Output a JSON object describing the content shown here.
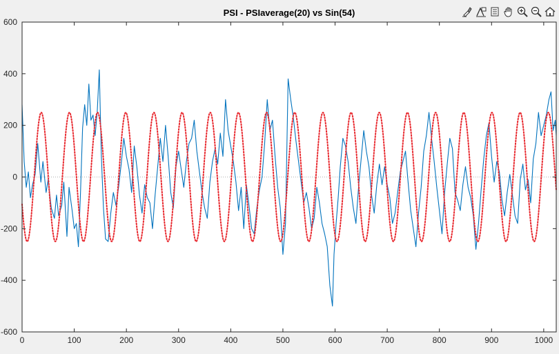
{
  "window": {
    "background": "#f0f0f0"
  },
  "toolbar": {
    "items": [
      {
        "name": "brush-icon"
      },
      {
        "name": "data-tips-icon"
      },
      {
        "name": "rotate-icon"
      },
      {
        "name": "pan-hand-icon"
      },
      {
        "name": "zoom-in-icon"
      },
      {
        "name": "zoom-out-icon"
      },
      {
        "name": "home-icon"
      }
    ]
  },
  "chart_data": {
    "type": "line",
    "title": "PSI - PSIaverage(20) vs Sin(54)",
    "xlabel": "",
    "ylabel": "",
    "xlim": [
      0,
      1024
    ],
    "ylim": [
      -600,
      600
    ],
    "xticks": [
      0,
      100,
      200,
      300,
      400,
      500,
      600,
      700,
      800,
      900,
      1000
    ],
    "yticks": [
      -600,
      -400,
      -200,
      0,
      200,
      400,
      600
    ],
    "grid": false,
    "zero_line": {
      "y": 0,
      "style": "dotted",
      "color": "#b0b0b0"
    },
    "series": [
      {
        "color": "#0072bd",
        "style": "solid",
        "points": [
          [
            0,
            280
          ],
          [
            4,
            60
          ],
          [
            8,
            -40
          ],
          [
            12,
            20
          ],
          [
            16,
            -80
          ],
          [
            20,
            -30
          ],
          [
            25,
            10
          ],
          [
            30,
            130
          ],
          [
            36,
            -20
          ],
          [
            40,
            60
          ],
          [
            46,
            -60
          ],
          [
            50,
            -10
          ],
          [
            56,
            -120
          ],
          [
            62,
            -160
          ],
          [
            66,
            -70
          ],
          [
            70,
            -150
          ],
          [
            76,
            -110
          ],
          [
            80,
            -20
          ],
          [
            86,
            -230
          ],
          [
            90,
            -40
          ],
          [
            96,
            -130
          ],
          [
            100,
            -200
          ],
          [
            104,
            -180
          ],
          [
            108,
            -270
          ],
          [
            112,
            -60
          ],
          [
            116,
            190
          ],
          [
            120,
            280
          ],
          [
            124,
            200
          ],
          [
            128,
            360
          ],
          [
            132,
            220
          ],
          [
            136,
            240
          ],
          [
            140,
            160
          ],
          [
            144,
            250
          ],
          [
            148,
            415
          ],
          [
            152,
            80
          ],
          [
            156,
            -120
          ],
          [
            160,
            -240
          ],
          [
            165,
            -250
          ],
          [
            170,
            -140
          ],
          [
            175,
            -60
          ],
          [
            180,
            -110
          ],
          [
            185,
            -40
          ],
          [
            190,
            50
          ],
          [
            195,
            150
          ],
          [
            200,
            80
          ],
          [
            205,
            30
          ],
          [
            210,
            -60
          ],
          [
            215,
            120
          ],
          [
            220,
            40
          ],
          [
            225,
            -70
          ],
          [
            230,
            -140
          ],
          [
            235,
            -30
          ],
          [
            240,
            -80
          ],
          [
            245,
            -100
          ],
          [
            250,
            -200
          ],
          [
            255,
            -70
          ],
          [
            260,
            40
          ],
          [
            265,
            150
          ],
          [
            270,
            60
          ],
          [
            275,
            200
          ],
          [
            280,
            80
          ],
          [
            285,
            -60
          ],
          [
            290,
            -120
          ],
          [
            295,
            40
          ],
          [
            300,
            100
          ],
          [
            305,
            30
          ],
          [
            310,
            -40
          ],
          [
            315,
            60
          ],
          [
            320,
            130
          ],
          [
            325,
            150
          ],
          [
            330,
            220
          ],
          [
            335,
            100
          ],
          [
            340,
            20
          ],
          [
            345,
            -60
          ],
          [
            350,
            -120
          ],
          [
            355,
            -160
          ],
          [
            360,
            -20
          ],
          [
            365,
            60
          ],
          [
            370,
            110
          ],
          [
            375,
            50
          ],
          [
            380,
            170
          ],
          [
            385,
            80
          ],
          [
            390,
            300
          ],
          [
            395,
            180
          ],
          [
            400,
            120
          ],
          [
            405,
            60
          ],
          [
            410,
            -20
          ],
          [
            415,
            -130
          ],
          [
            420,
            -40
          ],
          [
            425,
            -200
          ],
          [
            430,
            -30
          ],
          [
            435,
            -110
          ],
          [
            440,
            -200
          ],
          [
            445,
            -220
          ],
          [
            450,
            -120
          ],
          [
            455,
            -50
          ],
          [
            460,
            0
          ],
          [
            465,
            130
          ],
          [
            470,
            300
          ],
          [
            475,
            180
          ],
          [
            480,
            220
          ],
          [
            485,
            80
          ],
          [
            490,
            -40
          ],
          [
            495,
            -120
          ],
          [
            500,
            -300
          ],
          [
            505,
            -180
          ],
          [
            510,
            380
          ],
          [
            515,
            300
          ],
          [
            520,
            230
          ],
          [
            525,
            140
          ],
          [
            530,
            60
          ],
          [
            535,
            -20
          ],
          [
            540,
            -100
          ],
          [
            545,
            -60
          ],
          [
            550,
            -120
          ],
          [
            555,
            -200
          ],
          [
            560,
            -160
          ],
          [
            565,
            -40
          ],
          [
            570,
            -100
          ],
          [
            575,
            -180
          ],
          [
            580,
            -220
          ],
          [
            585,
            -270
          ],
          [
            590,
            -420
          ],
          [
            595,
            -500
          ],
          [
            598,
            -300
          ],
          [
            602,
            -180
          ],
          [
            606,
            -80
          ],
          [
            610,
            40
          ],
          [
            615,
            150
          ],
          [
            620,
            120
          ],
          [
            625,
            60
          ],
          [
            630,
            -40
          ],
          [
            635,
            -120
          ],
          [
            640,
            -180
          ],
          [
            645,
            -40
          ],
          [
            650,
            70
          ],
          [
            655,
            180
          ],
          [
            660,
            100
          ],
          [
            665,
            40
          ],
          [
            670,
            -70
          ],
          [
            675,
            -140
          ],
          [
            680,
            -30
          ],
          [
            685,
            50
          ],
          [
            690,
            -30
          ],
          [
            695,
            40
          ],
          [
            700,
            -30
          ],
          [
            705,
            -80
          ],
          [
            710,
            -180
          ],
          [
            715,
            -140
          ],
          [
            720,
            -60
          ],
          [
            725,
            20
          ],
          [
            730,
            60
          ],
          [
            735,
            100
          ],
          [
            740,
            -20
          ],
          [
            745,
            -130
          ],
          [
            750,
            -200
          ],
          [
            755,
            -270
          ],
          [
            760,
            -140
          ],
          [
            765,
            -40
          ],
          [
            770,
            100
          ],
          [
            775,
            160
          ],
          [
            780,
            250
          ],
          [
            785,
            150
          ],
          [
            790,
            60
          ],
          [
            795,
            -40
          ],
          [
            800,
            -130
          ],
          [
            805,
            -220
          ],
          [
            810,
            -60
          ],
          [
            815,
            50
          ],
          [
            820,
            150
          ],
          [
            825,
            110
          ],
          [
            830,
            -60
          ],
          [
            835,
            -90
          ],
          [
            840,
            -130
          ],
          [
            845,
            -30
          ],
          [
            850,
            40
          ],
          [
            855,
            -40
          ],
          [
            860,
            -80
          ],
          [
            865,
            -150
          ],
          [
            870,
            -280
          ],
          [
            875,
            -180
          ],
          [
            880,
            -50
          ],
          [
            885,
            70
          ],
          [
            890,
            160
          ],
          [
            895,
            210
          ],
          [
            900,
            80
          ],
          [
            905,
            -20
          ],
          [
            910,
            60
          ],
          [
            915,
            20
          ],
          [
            920,
            -90
          ],
          [
            925,
            -150
          ],
          [
            930,
            -60
          ],
          [
            935,
            10
          ],
          [
            940,
            -70
          ],
          [
            945,
            -150
          ],
          [
            950,
            -180
          ],
          [
            955,
            -10
          ],
          [
            960,
            50
          ],
          [
            965,
            -50
          ],
          [
            970,
            -10
          ],
          [
            975,
            -100
          ],
          [
            980,
            70
          ],
          [
            985,
            130
          ],
          [
            990,
            250
          ],
          [
            995,
            160
          ],
          [
            1000,
            200
          ],
          [
            1005,
            240
          ],
          [
            1010,
            300
          ],
          [
            1014,
            330
          ],
          [
            1018,
            180
          ],
          [
            1022,
            220
          ],
          [
            1024,
            160
          ]
        ]
      },
      {
        "color": "#e8282e",
        "style": "dotted",
        "amplitude": 250,
        "period": 54,
        "phase_deg": 205,
        "x_range": [
          0,
          1024
        ]
      }
    ]
  }
}
